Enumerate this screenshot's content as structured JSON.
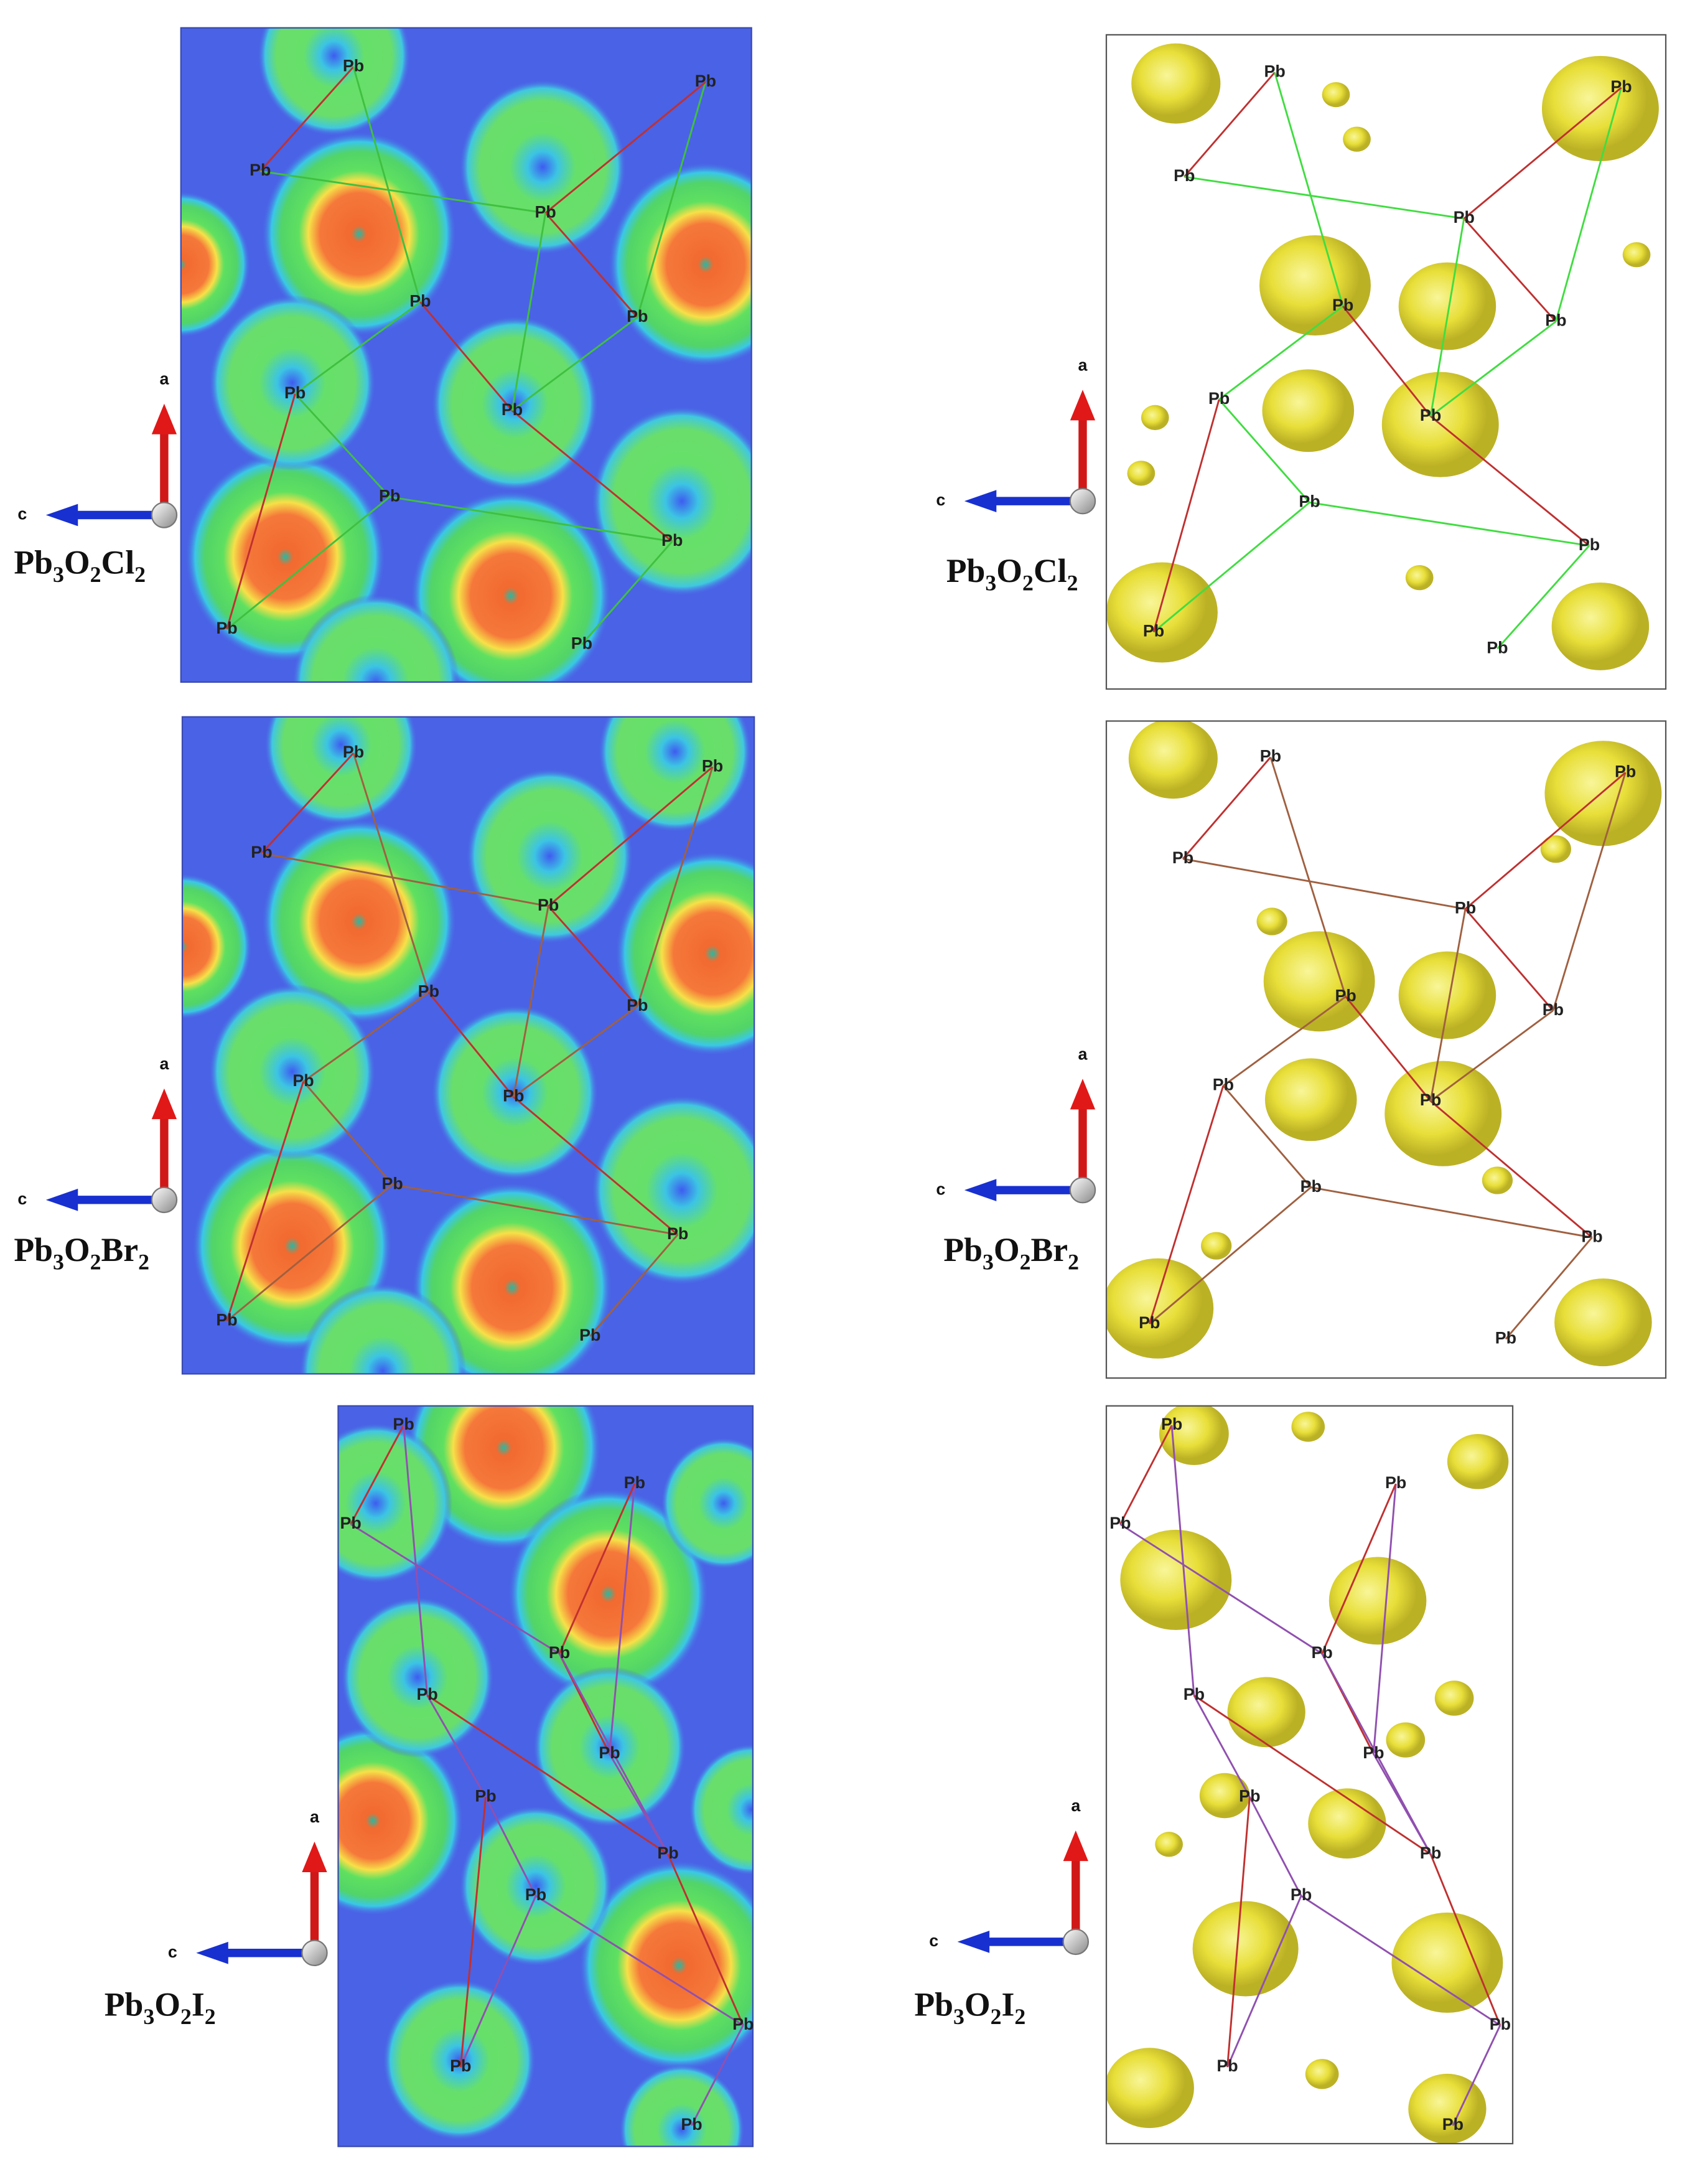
{
  "panels": [
    {
      "formula": [
        "Pb",
        "3",
        "O",
        "2",
        "Cl",
        "2"
      ],
      "axes": [
        "a",
        "c"
      ],
      "atoms": [
        "Pb",
        "Pb",
        "Pb",
        "Pb",
        "Pb",
        "Pb",
        "Pb",
        "Pb",
        "Pb",
        "Pb",
        "Pb",
        "Pb"
      ]
    },
    {
      "formula": [
        "Pb",
        "3",
        "O",
        "2",
        "Cl",
        "2"
      ],
      "axes": [
        "a",
        "c"
      ],
      "atoms": [
        "Pb",
        "Pb",
        "Pb",
        "Pb",
        "Pb",
        "Pb",
        "Pb",
        "Pb",
        "Pb",
        "Pb",
        "Pb",
        "Pb"
      ]
    },
    {
      "formula": [
        "Pb",
        "3",
        "O",
        "2",
        "Br",
        "2"
      ],
      "axes": [
        "a",
        "c"
      ],
      "atoms": [
        "Pb",
        "Pb",
        "Pb",
        "Pb",
        "Pb",
        "Pb",
        "Pb",
        "Pb",
        "Pb",
        "Pb",
        "Pb",
        "Pb"
      ]
    },
    {
      "formula": [
        "Pb",
        "3",
        "O",
        "2",
        "Br",
        "2"
      ],
      "axes": [
        "a",
        "c"
      ],
      "atoms": [
        "Pb",
        "Pb",
        "Pb",
        "Pb",
        "Pb",
        "Pb",
        "Pb",
        "Pb",
        "Pb",
        "Pb",
        "Pb",
        "Pb"
      ]
    },
    {
      "formula": [
        "Pb",
        "3",
        "O",
        "2",
        "I",
        "2"
      ],
      "axes": [
        "a",
        "c"
      ],
      "atoms": [
        "Pb",
        "Pb",
        "Pb",
        "Pb",
        "Pb",
        "Pb",
        "Pb",
        "Pb",
        "Pb",
        "Pb",
        "Pb",
        "Pb"
      ]
    },
    {
      "formula": [
        "Pb",
        "3",
        "O",
        "2",
        "I",
        "2"
      ],
      "axes": [
        "a",
        "c"
      ],
      "atoms": [
        "Pb",
        "Pb",
        "Pb",
        "Pb",
        "Pb",
        "Pb",
        "Pb",
        "Pb",
        "Pb",
        "Pb",
        "Pb",
        "Pb"
      ]
    }
  ]
}
